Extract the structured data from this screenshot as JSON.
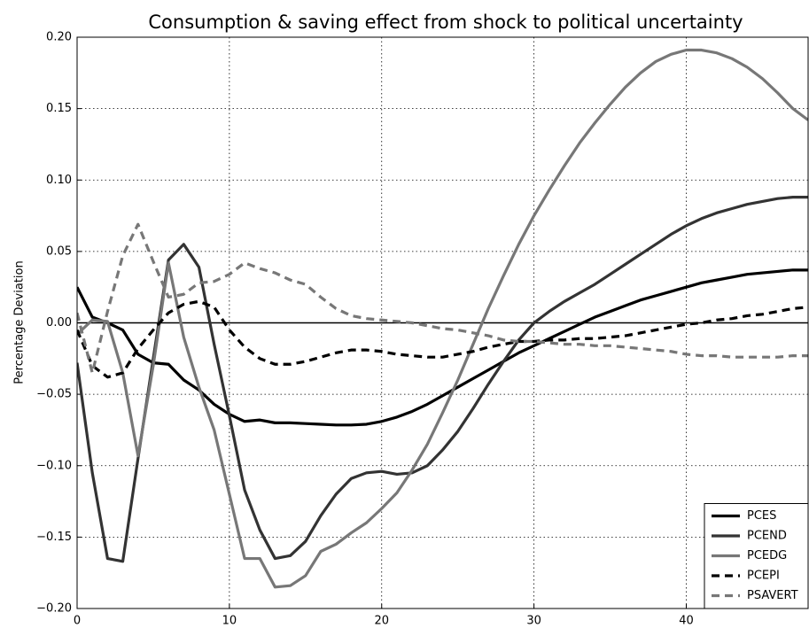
{
  "chart_data": {
    "type": "line",
    "title": "Consumption & saving effect from shock to political uncertainty",
    "y_label": "Percentage Deviation",
    "x": [
      0,
      1,
      2,
      3,
      4,
      5,
      6,
      7,
      8,
      9,
      10,
      11,
      12,
      13,
      14,
      15,
      16,
      17,
      18,
      19,
      20,
      21,
      22,
      23,
      24,
      25,
      26,
      27,
      28,
      29,
      30,
      31,
      32,
      33,
      34,
      35,
      36,
      37,
      38,
      39,
      40,
      41,
      42,
      43,
      44,
      45,
      46,
      47,
      48
    ],
    "series": [
      {
        "name": "PCES",
        "color": "#000000",
        "style": "solid",
        "values": [
          0.025,
          0.004,
          0.0,
          -0.005,
          -0.022,
          -0.028,
          -0.029,
          -0.04,
          -0.047,
          -0.057,
          -0.064,
          -0.069,
          -0.068,
          -0.07,
          -0.07,
          -0.0705,
          -0.071,
          -0.0715,
          -0.0715,
          -0.071,
          -0.069,
          -0.066,
          -0.062,
          -0.057,
          -0.051,
          -0.045,
          -0.039,
          -0.033,
          -0.027,
          -0.021,
          -0.016,
          -0.011,
          -0.006,
          -0.001,
          0.004,
          0.008,
          0.012,
          0.016,
          0.019,
          0.022,
          0.025,
          0.028,
          0.03,
          0.032,
          0.034,
          0.035,
          0.036,
          0.037,
          0.037
        ]
      },
      {
        "name": "PCEND",
        "color": "#333333",
        "style": "solid",
        "values": [
          -0.028,
          -0.105,
          -0.165,
          -0.167,
          -0.095,
          -0.025,
          0.044,
          0.055,
          0.039,
          -0.015,
          -0.065,
          -0.117,
          -0.145,
          -0.165,
          -0.163,
          -0.153,
          -0.135,
          -0.12,
          -0.109,
          -0.105,
          -0.104,
          -0.106,
          -0.105,
          -0.1,
          -0.089,
          -0.076,
          -0.06,
          -0.043,
          -0.027,
          -0.012,
          0.0,
          0.008,
          0.015,
          0.021,
          0.027,
          0.034,
          0.041,
          0.048,
          0.055,
          0.062,
          0.068,
          0.073,
          0.077,
          0.08,
          0.083,
          0.085,
          0.087,
          0.088,
          0.088
        ]
      },
      {
        "name": "PCEDG",
        "color": "#777777",
        "style": "solid",
        "values": [
          -0.008,
          0.002,
          0.001,
          -0.035,
          -0.093,
          -0.03,
          0.042,
          -0.01,
          -0.045,
          -0.075,
          -0.12,
          -0.165,
          -0.165,
          -0.185,
          -0.184,
          -0.177,
          -0.16,
          -0.155,
          -0.147,
          -0.14,
          -0.13,
          -0.119,
          -0.103,
          -0.085,
          -0.063,
          -0.04,
          -0.015,
          0.01,
          0.033,
          0.055,
          0.075,
          0.093,
          0.11,
          0.126,
          0.14,
          0.153,
          0.165,
          0.175,
          0.183,
          0.188,
          0.191,
          0.191,
          0.189,
          0.185,
          0.179,
          0.171,
          0.161,
          0.15,
          0.142
        ]
      },
      {
        "name": "PCEPI",
        "color": "#000000",
        "style": "dashed",
        "values": [
          -0.005,
          -0.03,
          -0.038,
          -0.035,
          -0.018,
          -0.005,
          0.007,
          0.013,
          0.015,
          0.011,
          -0.005,
          -0.017,
          -0.025,
          -0.029,
          -0.029,
          -0.027,
          -0.024,
          -0.021,
          -0.019,
          -0.019,
          -0.02,
          -0.022,
          -0.023,
          -0.024,
          -0.024,
          -0.022,
          -0.02,
          -0.017,
          -0.015,
          -0.013,
          -0.013,
          -0.012,
          -0.012,
          -0.011,
          -0.011,
          -0.01,
          -0.009,
          -0.007,
          -0.005,
          -0.003,
          -0.001,
          0.0,
          0.002,
          0.003,
          0.005,
          0.006,
          0.008,
          0.01,
          0.011
        ]
      },
      {
        "name": "PSAVERT",
        "color": "#777777",
        "style": "dashed",
        "values": [
          0.007,
          -0.035,
          0.008,
          0.047,
          0.069,
          0.043,
          0.018,
          0.02,
          0.028,
          0.029,
          0.034,
          0.042,
          0.038,
          0.035,
          0.03,
          0.027,
          0.018,
          0.01,
          0.005,
          0.003,
          0.002,
          0.001,
          0.0,
          -0.002,
          -0.004,
          -0.005,
          -0.007,
          -0.009,
          -0.012,
          -0.013,
          -0.013,
          -0.014,
          -0.015,
          -0.015,
          -0.016,
          -0.016,
          -0.017,
          -0.018,
          -0.019,
          -0.02,
          -0.022,
          -0.023,
          -0.023,
          -0.024,
          -0.024,
          -0.024,
          -0.024,
          -0.023,
          -0.023
        ]
      }
    ],
    "xlim": [
      0,
      48
    ],
    "xticks": [
      0,
      10,
      20,
      30,
      40
    ],
    "ylim": [
      -0.2,
      0.2
    ],
    "yticks": [
      {
        "value": -0.2,
        "label": "−0.20"
      },
      {
        "value": -0.15,
        "label": "−0.15"
      },
      {
        "value": -0.1,
        "label": "−0.10"
      },
      {
        "value": -0.05,
        "label": "−0.05"
      },
      {
        "value": 0,
        "label": "0.00"
      },
      {
        "value": 0.05,
        "label": "0.05"
      },
      {
        "value": 0.1,
        "label": "0.10"
      },
      {
        "value": 0.15,
        "label": "0.15"
      },
      {
        "value": 0.2,
        "label": "0.20"
      }
    ],
    "hline": 0,
    "grid": true,
    "legend": "lower right"
  }
}
